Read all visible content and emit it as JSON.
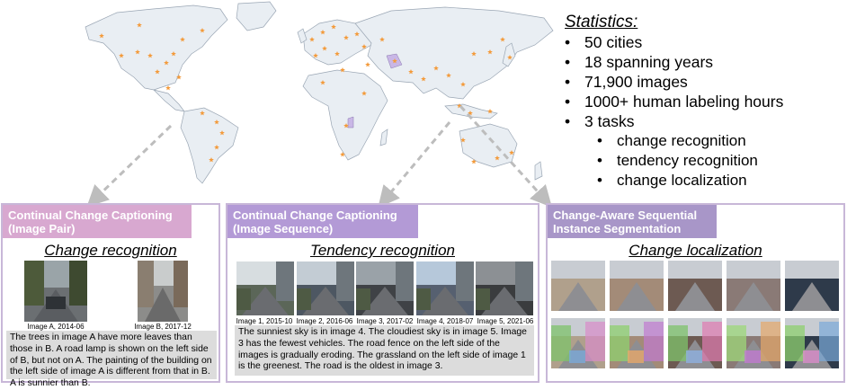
{
  "statistics": {
    "title": "Statistics:",
    "items": [
      "50 cities",
      "18 spanning years",
      "71,900 images",
      "1000+  human labeling hours",
      "3 tasks"
    ],
    "subitems": [
      "change recognition",
      "tendency recognition",
      "change localization"
    ]
  },
  "panels": {
    "pair": {
      "header_line1": "Continual Change Captioning",
      "header_line2": "(Image Pair)",
      "task": "Change recognition",
      "image_labels": [
        "Image A, 2014-06",
        "Image B, 2017-12"
      ],
      "caption": "The trees in image A have more leaves than those in B. A road lamp is shown on the left side of B, but not on A. The painting of the building on the left side of image A is different from that in B. A is sunnier than B."
    },
    "sequence": {
      "header_line1": "Continual Change Captioning",
      "header_line2": "(Image Sequence)",
      "task": "Tendency recognition",
      "image_labels": [
        "Image 1, 2015-10",
        "Image 2, 2016-06",
        "Image 3, 2017-02",
        "Image 4, 2018-07",
        "Image 5, 2021-06"
      ],
      "caption": "The sunniest sky is in image 4. The cloudiest sky is in image 5. Image 3 has the fewest vehicles. The road fence on the left side of the images is gradually eroding. The grassland on the left side of image 1 is the greenest. The road is the oldest in image 3."
    },
    "segmentation": {
      "header_line1": "Change-Aware Sequential",
      "header_line2": "Instance Segmentation",
      "task": "Change localization"
    }
  },
  "colors": {
    "panel_border": "#c8b7d8",
    "header_pair": "#d8a8d0",
    "header_sequence": "#b39ad6",
    "header_segmentation": "#a896c8",
    "map_land": "#e9eef3",
    "map_coast": "#9aa6b4",
    "city_marker": "#f39a3a",
    "arrow": "#bdbdbd"
  }
}
